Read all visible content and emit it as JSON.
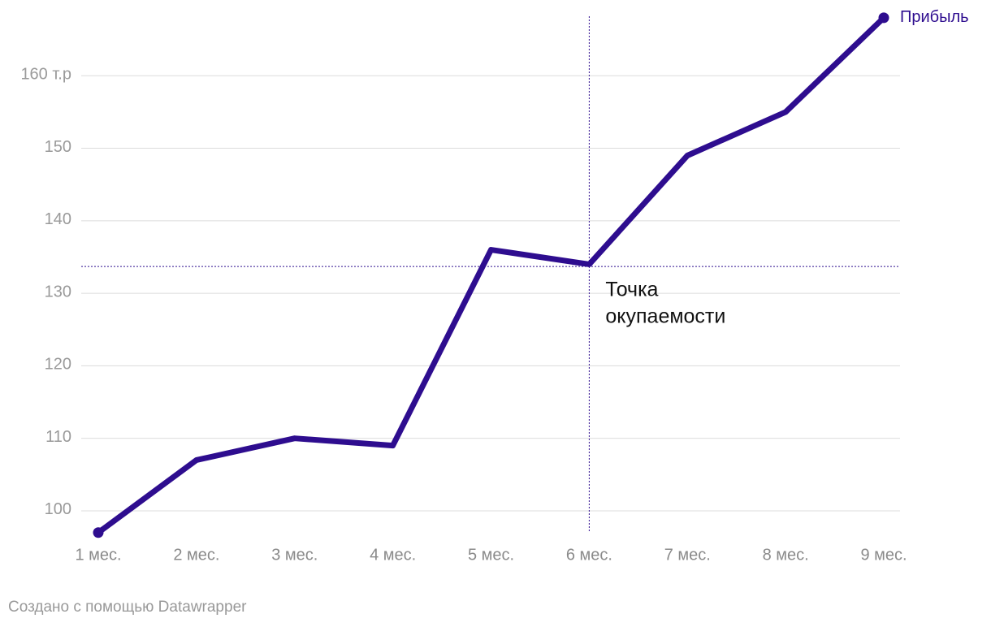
{
  "chart_data": {
    "type": "line",
    "categories": [
      "1 мес.",
      "2 мес.",
      "3 мес.",
      "4 мес.",
      "5 мес.",
      "6 мес.",
      "7 мес.",
      "8 мес.",
      "9 мес."
    ],
    "series": [
      {
        "name": "Прибыль",
        "color": "#2e0d8f",
        "values": [
          97,
          107,
          110,
          109,
          136,
          134,
          149,
          155,
          168
        ]
      }
    ],
    "ylim": [
      95,
      170
    ],
    "yticks": [
      100,
      110,
      120,
      130,
      140,
      150,
      {
        "value": 160,
        "label": "160 т.р"
      }
    ],
    "grid": true,
    "annotation": {
      "text": [
        "Точка",
        "окупаемости"
      ],
      "category": "6 мес.",
      "y": 133.7
    },
    "footer": "Создано с помощью Datawrapper"
  }
}
